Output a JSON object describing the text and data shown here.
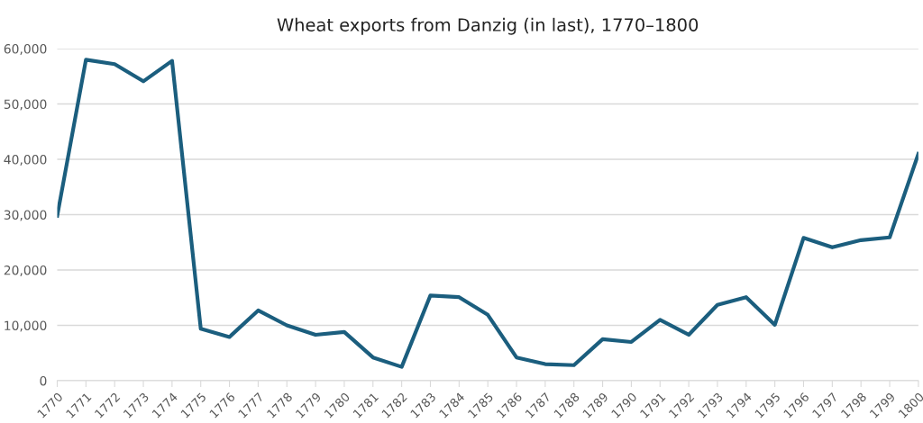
{
  "chart_data": {
    "type": "line",
    "title": "Wheat exports from Danzig (in last), 1770–1800",
    "categories": [
      "1770",
      "1771",
      "1772",
      "1773",
      "1774",
      "1775",
      "1776",
      "1777",
      "1778",
      "1779",
      "1780",
      "1781",
      "1782",
      "1783",
      "1784",
      "1785",
      "1786",
      "1787",
      "1788",
      "1789",
      "1790",
      "1791",
      "1792",
      "1793",
      "1794",
      "1795",
      "1796",
      "1797",
      "1798",
      "1799",
      "1800"
    ],
    "series": [
      {
        "color": "#1b5e7e",
        "values": [
          29800,
          58000,
          57200,
          54100,
          57800,
          9400,
          7900,
          12700,
          10000,
          8300,
          8800,
          4200,
          2500,
          15400,
          15100,
          11900,
          4200,
          3000,
          2800,
          7500,
          7000,
          11000,
          8300,
          13700,
          15100,
          10100,
          25800,
          24100,
          25400,
          25900,
          41000
        ]
      }
    ],
    "ylim": [
      0,
      60000
    ],
    "yticks": [
      0,
      {
        "value": 10000,
        "label": "10,000"
      },
      {
        "value": 20000,
        "label": "20,000"
      },
      {
        "value": 30000,
        "label": "30,000"
      },
      {
        "value": 40000,
        "label": "40,000"
      },
      {
        "value": 50000,
        "label": "50,000"
      },
      {
        "value": 60000,
        "label": "60,000"
      }
    ],
    "grid": "y",
    "line_style": "solid",
    "marker": "none"
  }
}
